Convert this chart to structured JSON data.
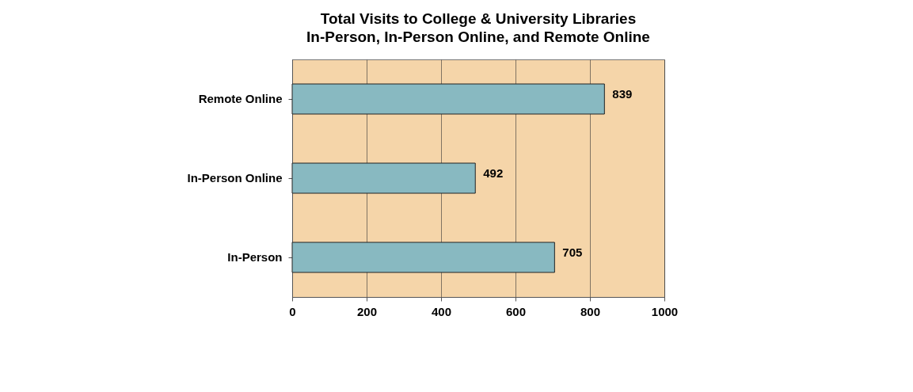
{
  "chart_data": {
    "type": "bar",
    "orientation": "horizontal",
    "title": "Total Visits to College & University Libraries",
    "subtitle": "In-Person, In-Person Online, and Remote Online",
    "categories": [
      "Remote Online",
      "In-Person Online",
      "In-Person"
    ],
    "values": [
      839,
      492,
      705
    ],
    "color": "#88b9c1",
    "xlim": [
      0,
      1000
    ],
    "xticks": [
      0,
      200,
      400,
      600,
      800,
      1000
    ],
    "grid": "x",
    "data_labels": true
  }
}
